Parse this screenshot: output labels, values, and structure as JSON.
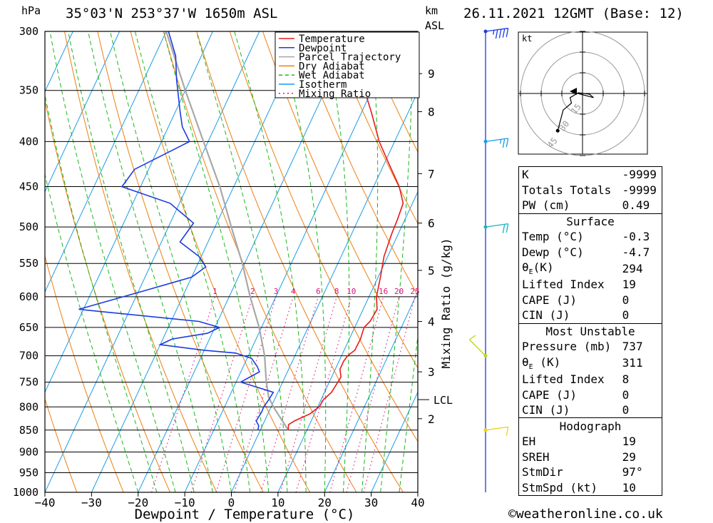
{
  "header": {
    "location": "35°03'N  253°37'W  1650m  ASL",
    "datetime": "26.11.2021  12GMT  (Base: 12)",
    "pressure_unit": "hPa",
    "km_unit": "km",
    "asl_unit": "ASL"
  },
  "axes": {
    "xlabel": "Dewpoint / Temperature (°C)",
    "mixing_label": "Mixing Ratio (g/kg)",
    "lcl_label": "LCL",
    "x_ticks": [
      "-40",
      "-30",
      "-20",
      "-10",
      "0",
      "10",
      "20",
      "30",
      "40"
    ],
    "p_ticks": [
      "300",
      "350",
      "400",
      "450",
      "500",
      "550",
      "600",
      "650",
      "700",
      "750",
      "800",
      "850",
      "900",
      "950",
      "1000"
    ],
    "km_ticks": [
      "9",
      "8",
      "7",
      "6",
      "5",
      "4",
      "3",
      "2"
    ],
    "mixing_ticks": [
      "1",
      "2",
      "3",
      "4",
      "6",
      "8",
      "10",
      "16",
      "20",
      "25"
    ]
  },
  "legend": [
    {
      "label": "Temperature",
      "color": "#e8191a",
      "dash": ""
    },
    {
      "label": "Dewpoint",
      "color": "#1a3be0",
      "dash": ""
    },
    {
      "label": "Parcel Trajectory",
      "color": "#a8a8a8",
      "dash": ""
    },
    {
      "label": "Dry Adiabat",
      "color": "#ee7f10",
      "dash": ""
    },
    {
      "label": "Wet Adiabat",
      "color": "#1ab81a",
      "dash": "5,4"
    },
    {
      "label": "Isotherm",
      "color": "#1a9ce8",
      "dash": ""
    },
    {
      "label": "Mixing Ratio",
      "color": "#d8177a",
      "dash": "2,4"
    }
  ],
  "chart_data": {
    "type": "line",
    "title": "Skew-T log-P sounding",
    "xlabel": "Dewpoint / Temperature (°C)",
    "ylabel": "hPa",
    "xlim": [
      -40,
      40
    ],
    "ylim": [
      1000,
      300
    ],
    "skew_deg_per_decade": 88,
    "series": [
      {
        "name": "Temperature",
        "color": "#e8191a",
        "points": [
          [
            850,
            6
          ],
          [
            838,
            5.5
          ],
          [
            830,
            6.4
          ],
          [
            815,
            9
          ],
          [
            800,
            10.3
          ],
          [
            785,
            10.5
          ],
          [
            770,
            11.5
          ],
          [
            740,
            12
          ],
          [
            725,
            11
          ],
          [
            710,
            11
          ],
          [
            700,
            11.3
          ],
          [
            690,
            12.3
          ],
          [
            670,
            12.4
          ],
          [
            650,
            12
          ],
          [
            640,
            12.7
          ],
          [
            620,
            13
          ],
          [
            600,
            11.6
          ],
          [
            570,
            10.5
          ],
          [
            540,
            9.2
          ],
          [
            510,
            8.6
          ],
          [
            490,
            8.4
          ],
          [
            470,
            8
          ],
          [
            450,
            5.5
          ],
          [
            425,
            1.2
          ],
          [
            400,
            -3.3
          ],
          [
            370,
            -8
          ],
          [
            330,
            -15.3
          ],
          [
            300,
            -21.5
          ]
        ]
      },
      {
        "name": "Dewpoint",
        "color": "#1a3be0",
        "points": [
          [
            850,
            -0.5
          ],
          [
            840,
            -0.8
          ],
          [
            830,
            -1.8
          ],
          [
            810,
            -1.5
          ],
          [
            800,
            -1.6
          ],
          [
            785,
            -1.2
          ],
          [
            770,
            -1
          ],
          [
            750,
            -9
          ],
          [
            730,
            -6
          ],
          [
            720,
            -7
          ],
          [
            705,
            -9
          ],
          [
            695,
            -13
          ],
          [
            690,
            -20
          ],
          [
            680,
            -30
          ],
          [
            670,
            -28
          ],
          [
            660,
            -21
          ],
          [
            650,
            -19
          ],
          [
            640,
            -24
          ],
          [
            620,
            -51
          ],
          [
            590,
            -38.5
          ],
          [
            570,
            -30
          ],
          [
            555,
            -28
          ],
          [
            540,
            -30.5
          ],
          [
            520,
            -36
          ],
          [
            495,
            -35
          ],
          [
            470,
            -42
          ],
          [
            450,
            -54
          ],
          [
            430,
            -53
          ],
          [
            400,
            -44
          ],
          [
            385,
            -47
          ],
          [
            370,
            -49
          ],
          [
            340,
            -53
          ],
          [
            320,
            -55.5
          ],
          [
            300,
            -59.5
          ]
        ]
      },
      {
        "name": "Parcel Trajectory",
        "color": "#a8a8a8",
        "points": [
          [
            850,
            6
          ],
          [
            800,
            0.5
          ],
          [
            780,
            -1.5
          ],
          [
            750,
            -3.5
          ],
          [
            700,
            -6.5
          ],
          [
            650,
            -10.5
          ],
          [
            600,
            -15.5
          ],
          [
            550,
            -20.5
          ],
          [
            500,
            -26.5
          ],
          [
            450,
            -33
          ],
          [
            400,
            -41
          ],
          [
            350,
            -50
          ],
          [
            300,
            -60
          ]
        ]
      }
    ],
    "lcl_hpa": 785,
    "km_levels": [
      [
        335,
        9
      ],
      [
        370,
        8
      ],
      [
        435,
        7
      ],
      [
        495,
        6
      ],
      [
        560,
        5
      ],
      [
        640,
        4
      ],
      [
        730,
        3
      ],
      [
        825,
        2
      ]
    ]
  },
  "hodograph": {
    "unit_label": "kt",
    "ring_labels": [
      "15",
      "30",
      "45"
    ],
    "trace": [
      [
        8,
        -3
      ],
      [
        5,
        -0.5
      ],
      [
        -3,
        0.5
      ],
      [
        -9,
        -3
      ],
      [
        -8,
        -7
      ],
      [
        -14,
        -12
      ],
      [
        -18,
        -27
      ]
    ],
    "arrow": [
      8,
      -3
    ]
  },
  "wind_barbs": [
    {
      "p": 300,
      "color": "#1a3be0",
      "kts": 45
    },
    {
      "p": 400,
      "color": "#1a9ce8",
      "kts": 25
    },
    {
      "p": 500,
      "color": "#18b4c0",
      "kts": 20
    },
    {
      "p": 700,
      "color": "#b8d81a",
      "kts": 10
    },
    {
      "p": 850,
      "color": "#f0d018",
      "kts": 10
    }
  ],
  "indices": {
    "k": {
      "label": "K",
      "value": "-9999"
    },
    "tt": {
      "label": "Totals Totals",
      "value": "-9999"
    },
    "pw": {
      "label": "PW (cm)",
      "value": "0.49"
    },
    "surface": {
      "title": "Surface",
      "rows": [
        {
          "label": "Temp (°C)",
          "value": "-0.3"
        },
        {
          "label": "Dewp (°C)",
          "value": "-4.7"
        },
        {
          "label": "θE(K)",
          "value": "294"
        },
        {
          "label": "Lifted Index",
          "value": "19"
        },
        {
          "label": "CAPE (J)",
          "value": "0"
        },
        {
          "label": "CIN (J)",
          "value": "0"
        }
      ]
    },
    "most_unstable": {
      "title": "Most Unstable",
      "rows": [
        {
          "label": "Pressure (mb)",
          "value": "737"
        },
        {
          "label": "θE (K)",
          "value": "311"
        },
        {
          "label": "Lifted Index",
          "value": "8"
        },
        {
          "label": "CAPE (J)",
          "value": "0"
        },
        {
          "label": "CIN (J)",
          "value": "0"
        }
      ]
    },
    "hodograph": {
      "title": "Hodograph",
      "rows": [
        {
          "label": "EH",
          "value": "19"
        },
        {
          "label": "SREH",
          "value": "29"
        },
        {
          "label": "StmDir",
          "value": "97°"
        },
        {
          "label": "StmSpd (kt)",
          "value": "10"
        }
      ]
    }
  },
  "footer": {
    "copyright": "©weatheronline.co.uk"
  }
}
